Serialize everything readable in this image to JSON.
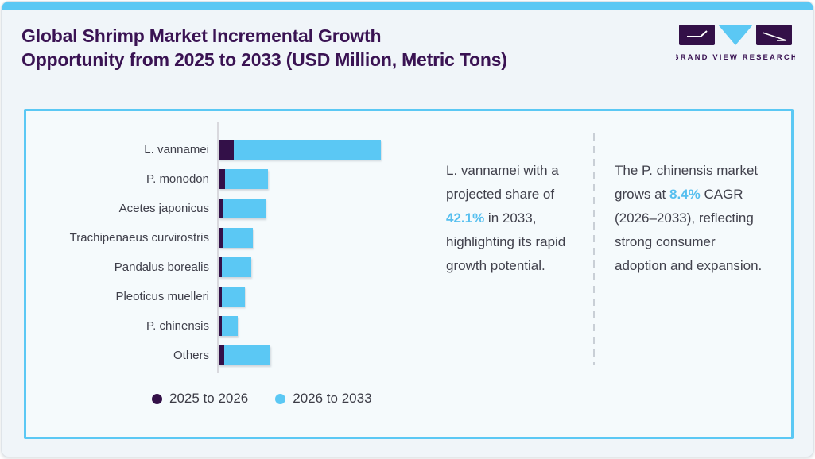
{
  "page": {
    "title_line1": "Global Shrimp Market Incremental Growth",
    "title_line2": "Opportunity from 2025 to 2033 (USD Million, Metric Tons)"
  },
  "logo": {
    "text": "GRAND VIEW RESEARCH"
  },
  "colors": {
    "title_purple": "#3a1353",
    "accent_blue": "#5bc8f4",
    "highlight_blue": "#56bfef",
    "dark_purple": "#331048",
    "card_background": "#f5fafc",
    "body_text": "#41414c"
  },
  "chart_data": {
    "type": "bar",
    "orientation": "horizontal",
    "stacked": true,
    "title": "Global Shrimp Market Incremental Growth Opportunity from 2025 to 2033 (USD Million, Metric Tons)",
    "xlabel": "",
    "ylabel": "",
    "axis_values_shown": false,
    "units": "relative growth (axis unlabeled)",
    "categories": [
      "L. vannamei",
      "P. monodon",
      "Acetes japonicus",
      "Trachipenaeus curvirostris",
      "Pandalus borealis",
      "Pleoticus muelleri",
      "P. chinensis",
      "Others"
    ],
    "series": [
      {
        "name": "2025 to 2026",
        "color": "#331048",
        "values": [
          19,
          8,
          6,
          5,
          4,
          3.5,
          3.5,
          7
        ]
      },
      {
        "name": "2026 to 2033",
        "color": "#5bc8f4",
        "values": [
          185,
          54,
          53,
          38,
          37,
          29,
          20,
          58
        ]
      }
    ],
    "legend_position": "bottom"
  },
  "legend": {
    "items": [
      {
        "label": "2025 to 2026",
        "color": "#331048"
      },
      {
        "label": "2026 to 2033",
        "color": "#5bc8f4"
      }
    ]
  },
  "insights": {
    "left": {
      "prefix": "L. vannamei with a projected share of ",
      "highlight": "42.1%",
      "suffix": " in 2033, highlighting its rapid growth potential."
    },
    "right": {
      "prefix": "The P. chinensis market grows at ",
      "highlight": "8.4%",
      "suffix": " CAGR (2026–2033), reflecting strong consumer adoption and expansion."
    }
  }
}
